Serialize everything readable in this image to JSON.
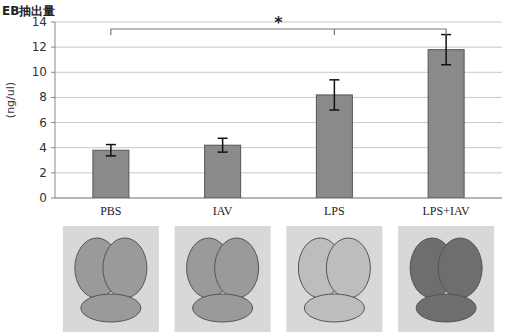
{
  "chart_data": {
    "type": "bar",
    "title": "EB抽出量",
    "y_label": "(ng/ul)",
    "categories": [
      "PBS",
      "IAV",
      "LPS",
      "LPS+IAV"
    ],
    "values": [
      3.8,
      4.2,
      8.2,
      11.8
    ],
    "errors": [
      0.45,
      0.55,
      1.2,
      1.2
    ],
    "color": "#8a8a8a",
    "ylim": [
      0,
      14
    ],
    "yticks": [
      0,
      2,
      4,
      6,
      8,
      10,
      12,
      14
    ],
    "grid": true,
    "annotation": "*"
  }
}
